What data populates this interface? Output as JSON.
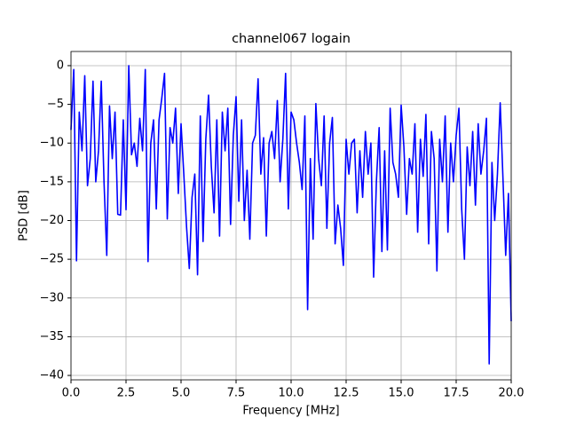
{
  "chart_data": {
    "type": "line",
    "title": "channel067 logain",
    "xlabel": "Frequency [MHz]",
    "ylabel": "PSD [dB]",
    "color": "#0000ff",
    "grid": true,
    "xlim": [
      0,
      20
    ],
    "ylim": [
      -40.57,
      1.83
    ],
    "xticks": [
      {
        "value": 0,
        "label": "0.0"
      },
      2.5,
      {
        "value": 5,
        "label": "5.0"
      },
      7.5,
      {
        "value": 10,
        "label": "10.0"
      },
      12.5,
      {
        "value": 15,
        "label": "15.0"
      },
      17.5,
      {
        "value": 20,
        "label": "20.0"
      }
    ],
    "yticks": [
      {
        "value": -40,
        "label": "−40"
      },
      {
        "value": -35,
        "label": "−35"
      },
      {
        "value": -30,
        "label": "−30"
      },
      {
        "value": -25,
        "label": "−25"
      },
      {
        "value": -20,
        "label": "−20"
      },
      {
        "value": -15,
        "label": "−15"
      },
      {
        "value": -10,
        "label": "−10"
      },
      {
        "value": -5,
        "label": "−5"
      },
      0
    ],
    "x": [
      0,
      0.125,
      0.25,
      0.375,
      0.5,
      0.625,
      0.75,
      0.875,
      1,
      1.125,
      1.25,
      1.375,
      1.5,
      1.625,
      1.75,
      1.875,
      2,
      2.125,
      2.25,
      2.375,
      2.5,
      2.625,
      2.75,
      2.875,
      3,
      3.125,
      3.25,
      3.375,
      3.5,
      3.625,
      3.75,
      3.875,
      4,
      4.125,
      4.25,
      4.375,
      4.5,
      4.625,
      4.75,
      4.875,
      5,
      5.125,
      5.25,
      5.375,
      5.5,
      5.625,
      5.75,
      5.875,
      6,
      6.125,
      6.25,
      6.375,
      6.5,
      6.625,
      6.75,
      6.875,
      7,
      7.125,
      7.25,
      7.375,
      7.5,
      7.625,
      7.75,
      7.875,
      8,
      8.125,
      8.25,
      8.375,
      8.5,
      8.625,
      8.75,
      8.875,
      9,
      9.125,
      9.25,
      9.375,
      9.5,
      9.625,
      9.75,
      9.875,
      10,
      10.125,
      10.25,
      10.375,
      10.5,
      10.625,
      10.75,
      10.875,
      11,
      11.125,
      11.25,
      11.375,
      11.5,
      11.625,
      11.75,
      11.875,
      12,
      12.125,
      12.25,
      12.375,
      12.5,
      12.625,
      12.75,
      12.875,
      13,
      13.125,
      13.25,
      13.375,
      13.5,
      13.625,
      13.75,
      13.875,
      14,
      14.125,
      14.25,
      14.375,
      14.5,
      14.625,
      14.75,
      14.875,
      15,
      15.125,
      15.25,
      15.375,
      15.5,
      15.625,
      15.75,
      15.875,
      16,
      16.125,
      16.25,
      16.375,
      16.5,
      16.625,
      16.75,
      16.875,
      17,
      17.125,
      17.25,
      17.375,
      17.5,
      17.625,
      17.75,
      17.875,
      18,
      18.125,
      18.25,
      18.375,
      18.5,
      18.625,
      18.75,
      18.875,
      19,
      19.125,
      19.25,
      19.375,
      19.5,
      19.625,
      19.75,
      19.875,
      20
    ],
    "values": [
      -8.3,
      -0.5,
      -25.2,
      -6,
      -11,
      -1.3,
      -15.5,
      -12,
      -2,
      -15,
      -11,
      -2,
      -15,
      -24.5,
      -5.2,
      -12,
      -6,
      -19.2,
      -19.3,
      -7,
      -18.6,
      0,
      -11.5,
      -10,
      -13,
      -6.8,
      -11,
      -0.5,
      -25.3,
      -10,
      -7,
      -18.5,
      -7,
      -4.2,
      -1,
      -19.8,
      -8,
      -10,
      -5.5,
      -16.5,
      -7.5,
      -14,
      -20.8,
      -26.2,
      -17,
      -14,
      -27,
      -6.5,
      -22.7,
      -9.5,
      -3.8,
      -13,
      -19,
      -7,
      -22,
      -6,
      -11,
      -5.5,
      -20.5,
      -9,
      -4,
      -17.5,
      -7,
      -20,
      -13.5,
      -22.4,
      -10,
      -9,
      -1.7,
      -14,
      -9.3,
      -22,
      -10,
      -8.5,
      -12,
      -4.5,
      -15,
      -9.5,
      -1,
      -18.5,
      -6,
      -7,
      -10,
      -12.5,
      -16,
      -6.5,
      -31.5,
      -12,
      -22.4,
      -4.9,
      -12,
      -15.5,
      -6.5,
      -21,
      -10,
      -6.7,
      -23,
      -18,
      -21,
      -25.8,
      -9.5,
      -14,
      -10,
      -9.5,
      -19,
      -11,
      -17,
      -8.5,
      -14,
      -10,
      -27.3,
      -15,
      -8,
      -24,
      -11,
      -23.8,
      -5.5,
      -12.5,
      -14,
      -17,
      -5.1,
      -10.5,
      -19.2,
      -12,
      -14,
      -7.5,
      -21.5,
      -9.5,
      -14.3,
      -6.3,
      -23,
      -8.5,
      -12,
      -26.5,
      -9.5,
      -15,
      -6.5,
      -21.5,
      -10,
      -15,
      -9,
      -5.5,
      -18.5,
      -25,
      -10.5,
      -15.5,
      -8.5,
      -18,
      -7.5,
      -14,
      -11,
      -6.8,
      -38.5,
      -12.5,
      -20,
      -14,
      -4.8,
      -14.5,
      -24.5,
      -16.5,
      -33
    ]
  }
}
